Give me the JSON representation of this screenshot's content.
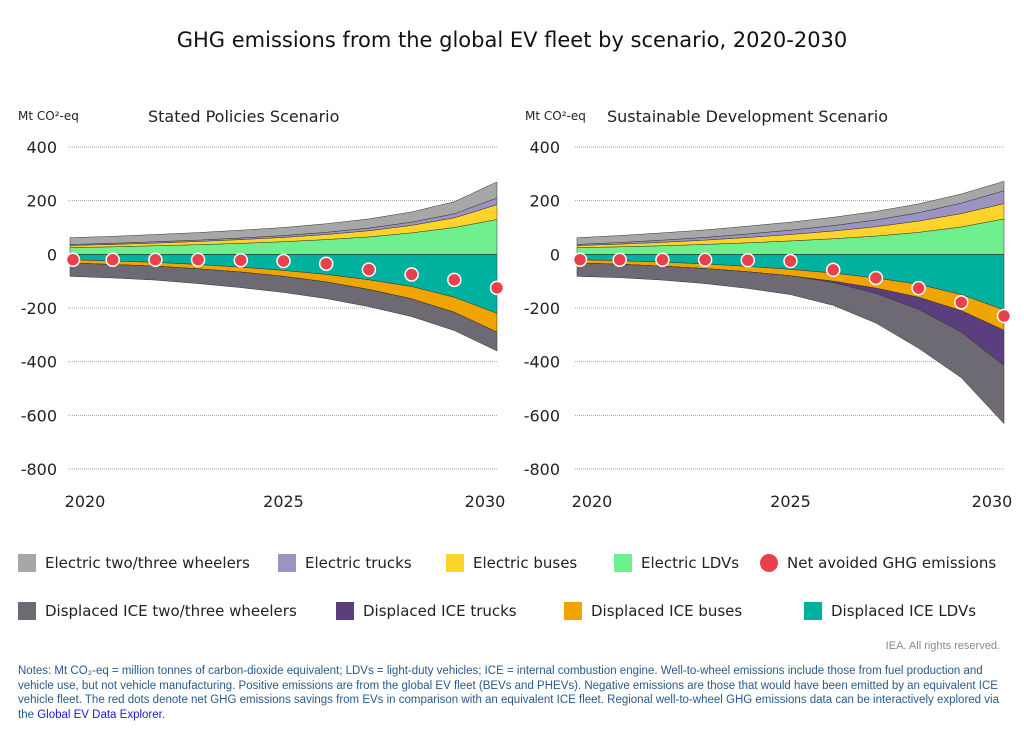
{
  "title": "GHG emissions from the global EV fleet by scenario, 2020-2030",
  "colors": {
    "Electric two/three wheelers": "#a7a7a7",
    "Electric trucks": "#9b94c2",
    "Electric buses": "#fed42b",
    "Electric LDVs": "#6ef08f",
    "Net avoided GHG emissions": "#e8414b",
    "Displaced ICE two/three wheelers": "#6e6a73",
    "Displaced ICE trucks": "#5b3e7e",
    "Displaced ICE buses": "#f0a400",
    "Displaced ICE LDVs": "#00b19f"
  },
  "legend": {
    "row1": [
      "Electric two/three wheelers",
      "Electric trucks",
      "Electric buses",
      "Electric LDVs",
      "Net avoided GHG emissions"
    ],
    "row2": [
      "Displaced ICE two/three wheelers",
      "Displaced ICE trucks",
      "Displaced ICE buses",
      "Displaced ICE LDVs"
    ]
  },
  "credit": "IEA. All rights reserved.",
  "notes": {
    "text": "Notes: Mt CO₂-eq = million tonnes of carbon-dioxide equivalent; LDVs = light-duty vehicles; ICE = internal combustion engine. Well-to-wheel emissions include those from fuel production and vehicle use, but not vehicle manufacturing. Positive emissions are from the global EV fleet (BEVs and PHEVs). Negative emissions are those that would have been emitted by an equivalent ICE vehicle fleet. The red dots denote net GHG emissions savings from EVs in comparison with an equivalent ICE fleet. Regional well-to-wheel GHG emissions data can be interactively explored via the ",
    "link": "Global EV Data Explorer",
    "end": "."
  },
  "chart_data": [
    {
      "type": "area",
      "stacked": true,
      "title": "Stated Policies Scenario",
      "ylabel": "Mt CO²-eq",
      "ylim": [
        -800,
        400
      ],
      "yticks": [
        400,
        200,
        0,
        -200,
        -400,
        -600,
        -800
      ],
      "xticks": [
        2020,
        2025,
        2030
      ],
      "grid": true,
      "x": [
        2020,
        2021,
        2022,
        2023,
        2024,
        2025,
        2026,
        2027,
        2028,
        2029,
        2030
      ],
      "series": [
        {
          "name": "Electric LDVs",
          "values": [
            25,
            28,
            32,
            36,
            41,
            47,
            55,
            65,
            80,
            100,
            130
          ]
        },
        {
          "name": "Electric buses",
          "values": [
            8,
            9,
            10,
            12,
            14,
            16,
            19,
            23,
            28,
            36,
            55
          ]
        },
        {
          "name": "Electric trucks",
          "values": [
            4,
            4,
            5,
            5,
            6,
            7,
            8,
            10,
            12,
            15,
            25
          ]
        },
        {
          "name": "Electric two/three wheelers",
          "values": [
            25,
            26,
            27,
            28,
            29,
            30,
            32,
            34,
            38,
            45,
            60
          ]
        },
        {
          "name": "Displaced ICE LDVs",
          "values": [
            -20,
            -25,
            -30,
            -38,
            -48,
            -60,
            -75,
            -95,
            -120,
            -160,
            -220
          ]
        },
        {
          "name": "Displaced ICE buses",
          "values": [
            -12,
            -13,
            -14,
            -16,
            -18,
            -22,
            -28,
            -36,
            -46,
            -56,
            -70
          ]
        },
        {
          "name": "Displaced ICE trucks",
          "values": [
            0,
            0,
            0,
            0,
            0,
            0,
            0,
            0,
            0,
            0,
            0
          ]
        },
        {
          "name": "Displaced ICE two/three wheelers",
          "values": [
            -50,
            -50,
            -52,
            -55,
            -58,
            -60,
            -62,
            -64,
            -66,
            -68,
            -70
          ]
        }
      ],
      "net": {
        "name": "Net avoided GHG emissions",
        "values": [
          -20,
          -20,
          -20,
          -20,
          -22,
          -25,
          -35,
          -57,
          -75,
          -95,
          -125
        ]
      }
    },
    {
      "type": "area",
      "stacked": true,
      "title": "Sustainable Development Scenario",
      "ylabel": "Mt CO²-eq",
      "ylim": [
        -800,
        400
      ],
      "yticks": [
        400,
        200,
        0,
        -200,
        -400,
        -600,
        -800
      ],
      "xticks": [
        2020,
        2025,
        2030
      ],
      "grid": true,
      "x": [
        2020,
        2021,
        2022,
        2023,
        2024,
        2025,
        2026,
        2027,
        2028,
        2029,
        2030
      ],
      "series": [
        {
          "name": "Electric LDVs",
          "values": [
            25,
            28,
            32,
            37,
            43,
            50,
            58,
            68,
            82,
            102,
            132
          ]
        },
        {
          "name": "Electric buses",
          "values": [
            8,
            10,
            13,
            16,
            20,
            24,
            29,
            35,
            42,
            50,
            57
          ]
        },
        {
          "name": "Electric trucks",
          "values": [
            4,
            6,
            8,
            10,
            13,
            16,
            20,
            25,
            31,
            39,
            48
          ]
        },
        {
          "name": "Electric two/three wheelers",
          "values": [
            25,
            26,
            27,
            28,
            29,
            30,
            31,
            32,
            33,
            34,
            35
          ]
        },
        {
          "name": "Displaced ICE LDVs",
          "values": [
            -20,
            -24,
            -29,
            -36,
            -45,
            -56,
            -70,
            -88,
            -112,
            -150,
            -207
          ]
        },
        {
          "name": "Displaced ICE buses",
          "values": [
            -12,
            -13,
            -15,
            -17,
            -20,
            -24,
            -30,
            -38,
            -48,
            -60,
            -76
          ]
        },
        {
          "name": "Displaced ICE trucks",
          "values": [
            0,
            0,
            0,
            0,
            0,
            0,
            -5,
            -20,
            -45,
            -80,
            -132
          ]
        },
        {
          "name": "Displaced ICE two/three wheelers",
          "values": [
            -50,
            -50,
            -52,
            -56,
            -62,
            -70,
            -85,
            -110,
            -145,
            -170,
            -216
          ]
        }
      ],
      "net": {
        "name": "Net avoided GHG emissions",
        "values": [
          -20,
          -20,
          -20,
          -20,
          -22,
          -25,
          -58,
          -88,
          -126,
          -179,
          -230
        ]
      }
    }
  ]
}
